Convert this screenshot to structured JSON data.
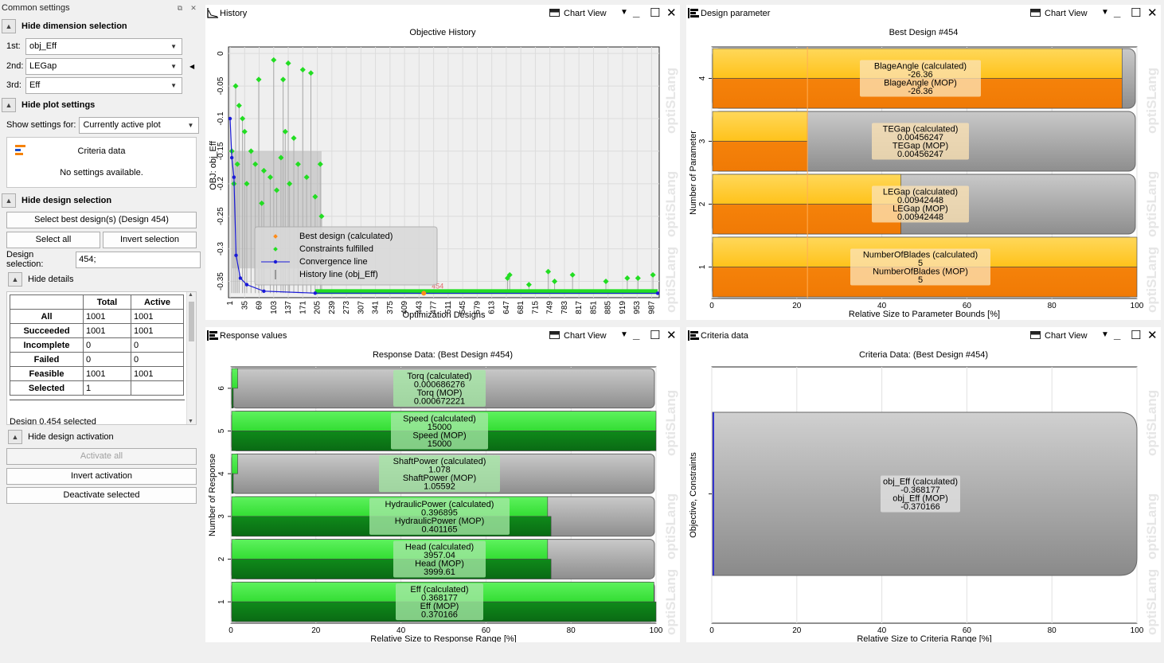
{
  "left": {
    "title": "Common settings",
    "dimension": {
      "header": "Hide dimension selection",
      "rows": [
        {
          "label": "1st:",
          "value": "obj_Eff"
        },
        {
          "label": "2nd:",
          "value": "LEGap"
        },
        {
          "label": "3rd:",
          "value": "Eff"
        }
      ]
    },
    "plot": {
      "header": "Hide plot settings",
      "show_label": "Show settings for:",
      "show_value": "Currently active plot",
      "criteria_title": "Criteria data",
      "no_settings": "No settings available."
    },
    "design": {
      "header": "Hide design selection",
      "select_best": "Select best design(s) (Design 454)",
      "select_all": "Select all",
      "invert_selection": "Invert selection",
      "selection_label": "Design selection:",
      "selection_value": "454;"
    },
    "details": {
      "header": "Hide details",
      "columns": [
        "",
        "Total",
        "Active"
      ],
      "rows": [
        [
          "All",
          "1001",
          "1001"
        ],
        [
          "Succeeded",
          "1001",
          "1001"
        ],
        [
          "Incomplete",
          "0",
          "0"
        ],
        [
          "Failed",
          "0",
          "0"
        ],
        [
          "Feasible",
          "1001",
          "1001"
        ],
        [
          "Selected",
          "1",
          ""
        ]
      ],
      "selected_text": "Design 0.454 selected"
    },
    "activation": {
      "header": "Hide design activation",
      "activate_all": "Activate all",
      "invert_activation": "Invert activation",
      "deactivate_selected": "Deactivate selected"
    }
  },
  "panels": {
    "history": {
      "title": "History",
      "view": "Chart View"
    },
    "design": {
      "title": "Design parameter",
      "view": "Chart View"
    },
    "response": {
      "title": "Response values",
      "view": "Chart View"
    },
    "criteria": {
      "title": "Criteria data",
      "view": "Chart View"
    }
  },
  "watermark": "optiSLang",
  "chart_data": [
    {
      "type": "scatter",
      "title": "Objective History",
      "xlabel": "Optimization Designs",
      "ylabel": "OBJ: obj_Eff",
      "ylim": [
        -0.375,
        0.01
      ],
      "x_ticks": [
        "1",
        "35",
        "69",
        "103",
        "137",
        "171",
        "205",
        "239",
        "273",
        "307",
        "341",
        "375",
        "409",
        "443",
        "477",
        "511",
        "545",
        "579",
        "613",
        "647",
        "681",
        "715",
        "749",
        "783",
        "817",
        "851",
        "885",
        "919",
        "953",
        "987"
      ],
      "y_ticks": [
        "0",
        "-0.05",
        "-0.1",
        "-0.15",
        "-0.2",
        "-0.25",
        "-0.3",
        "-0.35"
      ],
      "legend": [
        "Best design (calculated)",
        "Constraints fulfilled",
        "Convergence line",
        "History line (obj_Eff)"
      ],
      "annotation": "454",
      "colors": {
        "feasible": "#22dd22",
        "convergence": "#1a1ad8",
        "best": "#ff8c1a",
        "history": "#aaaaaa"
      },
      "convergence": [
        [
          1,
          -0.1
        ],
        [
          5,
          -0.16
        ],
        [
          10,
          -0.19
        ],
        [
          15,
          -0.31
        ],
        [
          25,
          -0.345
        ],
        [
          40,
          -0.355
        ],
        [
          80,
          -0.365
        ],
        [
          200,
          -0.368
        ],
        [
          454,
          -0.3682
        ],
        [
          1001,
          -0.3682
        ]
      ],
      "feasible_sparse": [
        [
          5,
          -0.15
        ],
        [
          10,
          -0.2
        ],
        [
          14,
          -0.05
        ],
        [
          18,
          -0.17
        ],
        [
          22,
          -0.08
        ],
        [
          30,
          -0.1
        ],
        [
          35,
          -0.12
        ],
        [
          40,
          -0.2
        ],
        [
          50,
          -0.15
        ],
        [
          60,
          -0.17
        ],
        [
          68,
          -0.04
        ],
        [
          75,
          -0.23
        ],
        [
          80,
          -0.18
        ],
        [
          95,
          -0.19
        ],
        [
          103,
          -0.01
        ],
        [
          110,
          -0.21
        ],
        [
          120,
          -0.16
        ],
        [
          125,
          -0.04
        ],
        [
          130,
          -0.12
        ],
        [
          137,
          -0.015
        ],
        [
          140,
          -0.2
        ],
        [
          150,
          -0.13
        ],
        [
          160,
          -0.17
        ],
        [
          171,
          -0.025
        ],
        [
          180,
          -0.19
        ],
        [
          190,
          -0.03
        ],
        [
          200,
          -0.22
        ],
        [
          212,
          -0.17
        ],
        [
          215,
          -0.25
        ]
      ],
      "feasible_late": [
        [
          650,
          -0.345
        ],
        [
          655,
          -0.34
        ],
        [
          700,
          -0.355
        ],
        [
          745,
          -0.335
        ],
        [
          760,
          -0.35
        ],
        [
          802,
          -0.34
        ],
        [
          880,
          -0.35
        ],
        [
          930,
          -0.345
        ],
        [
          955,
          -0.345
        ],
        [
          990,
          -0.34
        ]
      ]
    },
    {
      "type": "bar",
      "title": "Best Design #454",
      "xlabel": "Relative Size to Parameter Bounds [%]",
      "ylabel": "Number of Parameter",
      "xlim": [
        0,
        100
      ],
      "x_ticks": [
        "0",
        "20",
        "40",
        "60",
        "80",
        "100"
      ],
      "y_ticks": [
        "1",
        "2",
        "3",
        "4"
      ],
      "colors": {
        "calculated": "#ffc21a",
        "mop": "#f5820a",
        "remainder": "#9a9a9a"
      },
      "series": [
        {
          "name": "BlageAngle",
          "index": "4",
          "calc_pct": 96.5,
          "mop_pct": 96.5,
          "calc_label": "BlageAngle (calculated)",
          "calc_value": "-26.36",
          "mop_label": "BlageAngle (MOP)",
          "mop_value": "-26.36"
        },
        {
          "name": "TEGap",
          "index": "3",
          "calc_pct": 22.5,
          "mop_pct": 22.5,
          "calc_label": "TEGap (calculated)",
          "calc_value": "0.00456247",
          "mop_label": "TEGap (MOP)",
          "mop_value": "0.00456247"
        },
        {
          "name": "LEGap",
          "index": "2",
          "calc_pct": 44.5,
          "mop_pct": 44.5,
          "calc_label": "LEGap (calculated)",
          "calc_value": "0.00942448",
          "mop_label": "LEGap (MOP)",
          "mop_value": "0.00942448"
        },
        {
          "name": "NumberOfBlades",
          "index": "1",
          "calc_pct": 100,
          "mop_pct": 100,
          "calc_label": "NumberOfBlades (calculated)",
          "calc_value": "5",
          "mop_label": "NumberOfBlades (MOP)",
          "mop_value": "5"
        }
      ]
    },
    {
      "type": "bar",
      "title": "Response Data: (Best Design #454)",
      "xlabel": "Relative Size to Response Range [%]",
      "ylabel": "Number of Response",
      "xlim": [
        0,
        100
      ],
      "x_ticks": [
        "0",
        "20",
        "40",
        "60",
        "80",
        "100"
      ],
      "y_ticks": [
        "1",
        "2",
        "3",
        "4",
        "5",
        "6"
      ],
      "colors": {
        "calculated": "#33dd33",
        "mop": "#0f8a1a",
        "remainder": "#9a9a9a"
      },
      "series": [
        {
          "name": "Torq",
          "index": "6",
          "calc_pct": 1.6,
          "mop_pct": 0.4,
          "calc_label": "Torq (calculated)",
          "calc_value": "0.000686276",
          "mop_label": "Torq (MOP)",
          "mop_value": "0.000672221"
        },
        {
          "name": "Speed",
          "index": "5",
          "calc_pct": 100,
          "mop_pct": 100,
          "calc_label": "Speed (calculated)",
          "calc_value": "15000",
          "mop_label": "Speed (MOP)",
          "mop_value": "15000"
        },
        {
          "name": "ShaftPower",
          "index": "4",
          "calc_pct": 1.6,
          "mop_pct": 0.4,
          "calc_label": "ShaftPower (calculated)",
          "calc_value": "1.078",
          "mop_label": "ShaftPower (MOP)",
          "mop_value": "1.05592"
        },
        {
          "name": "HydraulicPower",
          "index": "3",
          "calc_pct": 74.5,
          "mop_pct": 75.3,
          "calc_label": "HydraulicPower (calculated)",
          "calc_value": "0.396895",
          "mop_label": "HydraulicPower (MOP)",
          "mop_value": "0.401165"
        },
        {
          "name": "Head",
          "index": "2",
          "calc_pct": 74.5,
          "mop_pct": 75.3,
          "calc_label": "Head (calculated)",
          "calc_value": "3957.04",
          "mop_label": "Head (MOP)",
          "mop_value": "3999.61"
        },
        {
          "name": "Eff",
          "index": "1",
          "calc_pct": 99.5,
          "mop_pct": 100,
          "calc_label": "Eff (calculated)",
          "calc_value": "0.368177",
          "mop_label": "Eff (MOP)",
          "mop_value": "0.370166"
        }
      ]
    },
    {
      "type": "bar",
      "title": "Criteria Data: (Best Design #454)",
      "xlabel": "Relative Size to Criteria Range [%]",
      "ylabel": "Objective, Constraints",
      "xlim": [
        0,
        100
      ],
      "x_ticks": [
        "0",
        "20",
        "40",
        "60",
        "80",
        "100"
      ],
      "colors": {
        "calculated": "#3333cc",
        "remainder": "#9a9a9a"
      },
      "series": [
        {
          "name": "obj_Eff",
          "calc_pct": 0.4,
          "calc_label": "obj_Eff (calculated)",
          "calc_value": "-0.368177",
          "mop_label": "obj_Eff (MOP)",
          "mop_value": "-0.370166"
        }
      ]
    }
  ]
}
